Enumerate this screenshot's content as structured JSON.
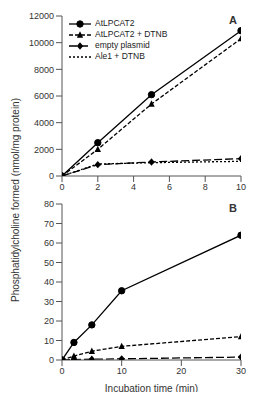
{
  "chart_data": [
    {
      "type": "line",
      "title": "A",
      "ylabel": "Phosphatidylcholine formed (nmol/mg protein)",
      "legend": "upper left",
      "x": [
        0,
        2,
        5,
        10
      ],
      "xlim": [
        0,
        10
      ],
      "xticks": [
        0,
        2,
        4,
        6,
        8,
        10
      ],
      "ylim": [
        0,
        12000
      ],
      "yticks": [
        0,
        2000,
        4000,
        6000,
        8000,
        10000,
        12000
      ],
      "series": [
        {
          "name": "AtLPCAT2",
          "color": "#000000",
          "marker": "circle",
          "line_style": "solid",
          "values": [
            0,
            2500,
            6100,
            10900
          ]
        },
        {
          "name": "AtLPCAT2 + DTNB",
          "color": "#000000",
          "marker": "triangle",
          "line_style": "dashed",
          "values": [
            0,
            2000,
            5400,
            10300
          ]
        },
        {
          "name": "empty plasmid",
          "color": "#000000",
          "marker": "diamond",
          "line_style": "longdash",
          "values": [
            0,
            850,
            1050,
            1300
          ]
        },
        {
          "name": "Ale1 + DTNB",
          "color": "#000000",
          "marker": "none",
          "line_style": "dotted",
          "values": [
            0,
            900,
            1000,
            1100
          ]
        }
      ]
    },
    {
      "type": "line",
      "title": "B",
      "xlabel": "Incubation time (min)",
      "x": [
        0,
        2,
        5,
        10,
        30
      ],
      "xlim": [
        0,
        30
      ],
      "xticks": [
        0,
        10,
        20,
        30
      ],
      "ylim": [
        0,
        80
      ],
      "yticks": [
        0,
        10,
        20,
        30,
        40,
        50,
        60,
        70,
        80
      ],
      "series": [
        {
          "name": "AtLPCAT2",
          "color": "#000000",
          "marker": "circle",
          "line_style": "solid",
          "values": [
            0,
            9,
            18,
            35.5,
            64
          ]
        },
        {
          "name": "AtLPCAT2 + DTNB",
          "color": "#000000",
          "marker": "triangle",
          "line_style": "dashed",
          "values": [
            0,
            2,
            4.5,
            7,
            12
          ]
        },
        {
          "name": "empty plasmid",
          "color": "#000000",
          "marker": "diamond",
          "line_style": "longdash",
          "values": [
            0,
            0.2,
            0.4,
            0.6,
            1.5
          ]
        }
      ]
    }
  ]
}
